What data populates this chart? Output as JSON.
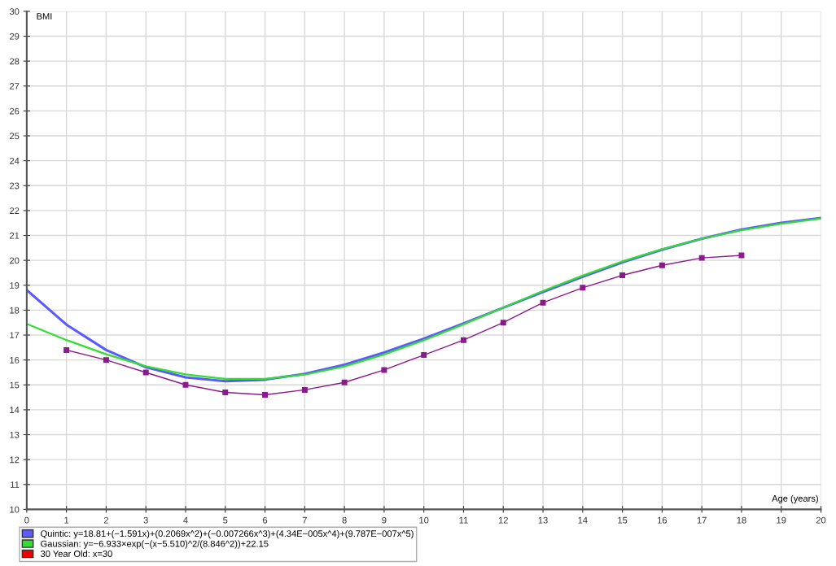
{
  "chart_data": {
    "type": "line",
    "xlabel": "Age (years)",
    "ylabel": "BMI",
    "xlim": [
      0,
      20
    ],
    "xticks": [
      0,
      1,
      2,
      3,
      4,
      5,
      6,
      7,
      8,
      9,
      10,
      11,
      12,
      13,
      14,
      15,
      16,
      17,
      18,
      19,
      20
    ],
    "ylim": [
      10,
      30
    ],
    "yticks": [
      10,
      11,
      12,
      13,
      14,
      15,
      16,
      17,
      18,
      19,
      20,
      21,
      22,
      23,
      24,
      25,
      26,
      27,
      28,
      29,
      30
    ],
    "grid": true,
    "legend": "bottom",
    "line_style": "solid",
    "series": [
      {
        "name": "Quintic: y=18.81+(−1.591x)+(0.2069x^2)+(−0.007266x^3)+(4.34E−005x^4)+(9.787E−007x^5)",
        "color": "#5a5aff",
        "marker": "none",
        "x": [
          0,
          1,
          2,
          3,
          4,
          5,
          6,
          7,
          8,
          9,
          10,
          11,
          12,
          13,
          14,
          15,
          16,
          17,
          18,
          19,
          20
        ],
        "values": [
          18.81,
          17.42,
          16.4,
          15.71,
          15.3,
          15.15,
          15.21,
          15.44,
          15.81,
          16.3,
          16.86,
          17.47,
          18.1,
          18.73,
          19.34,
          19.92,
          20.43,
          20.87,
          21.24,
          21.51,
          21.7
        ]
      },
      {
        "name": "Gaussian: y=−6.933×exp(−(x−5.510)^2/(8.846^2))+22.15",
        "color": "#33dd33",
        "marker": "none",
        "x": [
          0,
          1,
          2,
          3,
          4,
          5,
          6,
          7,
          8,
          9,
          10,
          11,
          12,
          13,
          14,
          15,
          16,
          17,
          18,
          19,
          20
        ],
        "values": [
          17.45,
          16.8,
          16.23,
          15.75,
          15.42,
          15.24,
          15.24,
          15.41,
          15.74,
          16.22,
          16.79,
          17.43,
          18.1,
          18.77,
          19.39,
          19.96,
          20.45,
          20.87,
          21.21,
          21.47,
          21.68
        ]
      },
      {
        "color": "#8b1a8b",
        "marker": "square",
        "x": [
          1,
          2,
          3,
          4,
          5,
          6,
          7,
          8,
          9,
          10,
          11,
          12,
          13,
          14,
          15,
          16,
          17,
          18
        ],
        "values": [
          16.4,
          16.0,
          15.5,
          15.0,
          14.7,
          14.6,
          14.8,
          15.1,
          15.6,
          16.2,
          16.8,
          17.5,
          18.3,
          18.9,
          19.4,
          19.8,
          20.1,
          20.2
        ]
      }
    ],
    "annotations": [
      "30 Year Old: x=30"
    ]
  }
}
